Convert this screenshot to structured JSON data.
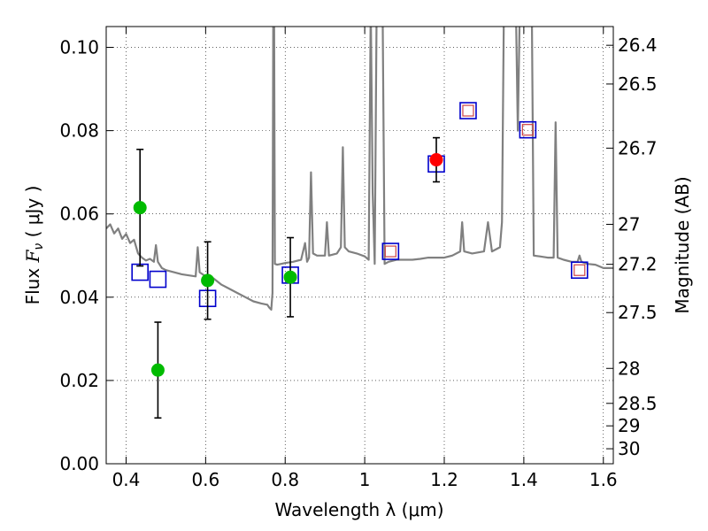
{
  "chart_data": {
    "type": "scatter",
    "xlabel": "Wavelength  λ (μm)",
    "ylabel_left": {
      "prefix": "Flux  ",
      "symbol": "F",
      "sub": "ν",
      "suffix": "  ( μJy )"
    },
    "ylabel_right": "Magnitude (AB)",
    "xlim": [
      0.35,
      1.625
    ],
    "ylim": [
      0.0,
      0.105
    ],
    "grid": true,
    "x_ticks": [
      0.4,
      0.6,
      0.8,
      1.0,
      1.2,
      1.4,
      1.6
    ],
    "x_tick_labels": [
      "0.4",
      "0.6",
      "0.8",
      "1",
      "1.2",
      "1.4",
      "1.6"
    ],
    "y_ticks": [
      0.0,
      0.02,
      0.04,
      0.06,
      0.08,
      0.1
    ],
    "y_tick_labels": [
      "0.00",
      "0.02",
      "0.04",
      "0.06",
      "0.08",
      "0.10"
    ],
    "mag_ticks": [
      {
        "label": "26.4",
        "flux": 0.1005
      },
      {
        "label": "26.5",
        "flux": 0.0912
      },
      {
        "label": "26.7",
        "flux": 0.0758
      },
      {
        "label": "27",
        "flux": 0.0575
      },
      {
        "label": "27.2",
        "flux": 0.0479
      },
      {
        "label": "27.5",
        "flux": 0.0363
      },
      {
        "label": "28",
        "flux": 0.0229
      },
      {
        "label": "28.5",
        "flux": 0.0145
      },
      {
        "label": "29",
        "flux": 0.0091
      },
      {
        "label": "30",
        "flux": 0.0036
      }
    ],
    "colors": {
      "model": "#808080",
      "photometry": "#00bb00",
      "spec_point": "#ff0000",
      "model_box": "#0000cc",
      "model_inner": "#cc4444",
      "errorbar": "#000000"
    },
    "model_spectrum": [
      [
        0.35,
        0.0565
      ],
      [
        0.36,
        0.0575
      ],
      [
        0.37,
        0.0553
      ],
      [
        0.38,
        0.0565
      ],
      [
        0.39,
        0.054
      ],
      [
        0.4,
        0.0552
      ],
      [
        0.41,
        0.053
      ],
      [
        0.42,
        0.0538
      ],
      [
        0.43,
        0.0505
      ],
      [
        0.44,
        0.0495
      ],
      [
        0.45,
        0.0488
      ],
      [
        0.46,
        0.0492
      ],
      [
        0.47,
        0.0485
      ],
      [
        0.475,
        0.0525
      ],
      [
        0.48,
        0.0485
      ],
      [
        0.49,
        0.047
      ],
      [
        0.5,
        0.0465
      ],
      [
        0.52,
        0.046
      ],
      [
        0.54,
        0.0455
      ],
      [
        0.56,
        0.0452
      ],
      [
        0.575,
        0.045
      ],
      [
        0.58,
        0.052
      ],
      [
        0.585,
        0.046
      ],
      [
        0.6,
        0.045
      ],
      [
        0.62,
        0.0445
      ],
      [
        0.64,
        0.043
      ],
      [
        0.66,
        0.042
      ],
      [
        0.68,
        0.041
      ],
      [
        0.7,
        0.04
      ],
      [
        0.72,
        0.039
      ],
      [
        0.74,
        0.0385
      ],
      [
        0.755,
        0.0382
      ],
      [
        0.76,
        0.0375
      ],
      [
        0.765,
        0.037
      ],
      [
        0.768,
        0.041
      ],
      [
        0.77,
        0.11
      ],
      [
        0.772,
        0.11
      ],
      [
        0.774,
        0.048
      ],
      [
        0.78,
        0.0478
      ],
      [
        0.79,
        0.048
      ],
      [
        0.8,
        0.0482
      ],
      [
        0.82,
        0.0485
      ],
      [
        0.84,
        0.049
      ],
      [
        0.85,
        0.053
      ],
      [
        0.855,
        0.0485
      ],
      [
        0.86,
        0.0495
      ],
      [
        0.865,
        0.07
      ],
      [
        0.87,
        0.0505
      ],
      [
        0.88,
        0.05
      ],
      [
        0.9,
        0.05
      ],
      [
        0.905,
        0.058
      ],
      [
        0.91,
        0.05
      ],
      [
        0.93,
        0.0505
      ],
      [
        0.94,
        0.052
      ],
      [
        0.945,
        0.076
      ],
      [
        0.95,
        0.052
      ],
      [
        0.96,
        0.051
      ],
      [
        0.98,
        0.0505
      ],
      [
        1.0,
        0.0498
      ],
      [
        1.01,
        0.049
      ],
      [
        1.015,
        0.11
      ],
      [
        1.02,
        0.065
      ],
      [
        1.025,
        0.048
      ],
      [
        1.03,
        0.11
      ],
      [
        1.045,
        0.11
      ],
      [
        1.05,
        0.048
      ],
      [
        1.06,
        0.0485
      ],
      [
        1.08,
        0.049
      ],
      [
        1.1,
        0.049
      ],
      [
        1.12,
        0.049
      ],
      [
        1.14,
        0.0492
      ],
      [
        1.16,
        0.0495
      ],
      [
        1.18,
        0.0495
      ],
      [
        1.2,
        0.0495
      ],
      [
        1.22,
        0.05
      ],
      [
        1.24,
        0.051
      ],
      [
        1.245,
        0.058
      ],
      [
        1.25,
        0.051
      ],
      [
        1.27,
        0.0505
      ],
      [
        1.3,
        0.051
      ],
      [
        1.31,
        0.058
      ],
      [
        1.32,
        0.051
      ],
      [
        1.34,
        0.052
      ],
      [
        1.345,
        0.058
      ],
      [
        1.35,
        0.11
      ],
      [
        1.38,
        0.11
      ],
      [
        1.385,
        0.08
      ],
      [
        1.39,
        0.11
      ],
      [
        1.4,
        0.11
      ],
      [
        1.42,
        0.11
      ],
      [
        1.425,
        0.05
      ],
      [
        1.44,
        0.0498
      ],
      [
        1.46,
        0.0495
      ],
      [
        1.475,
        0.0495
      ],
      [
        1.48,
        0.082
      ],
      [
        1.485,
        0.0495
      ],
      [
        1.5,
        0.049
      ],
      [
        1.52,
        0.0485
      ],
      [
        1.535,
        0.0485
      ],
      [
        1.54,
        0.05
      ],
      [
        1.545,
        0.0485
      ],
      [
        1.56,
        0.048
      ],
      [
        1.58,
        0.0478
      ],
      [
        1.6,
        0.047
      ],
      [
        1.625,
        0.047
      ]
    ],
    "photometry": [
      {
        "x": 0.435,
        "y": 0.0615,
        "yerr": 0.014
      },
      {
        "x": 0.48,
        "y": 0.0225,
        "yerr": 0.0115
      },
      {
        "x": 0.605,
        "y": 0.044,
        "yerr": 0.0093
      },
      {
        "x": 0.813,
        "y": 0.0448,
        "yerr": 0.0095
      }
    ],
    "spectroscopic_point": {
      "x": 1.18,
      "y": 0.073,
      "yerr": 0.0053
    },
    "model_bandpass": [
      {
        "x": 0.435,
        "y": 0.046,
        "inner": false
      },
      {
        "x": 0.48,
        "y": 0.0443,
        "inner": false
      },
      {
        "x": 0.605,
        "y": 0.0397,
        "inner": false
      },
      {
        "x": 0.813,
        "y": 0.0453,
        "inner": false
      },
      {
        "x": 1.065,
        "y": 0.051,
        "inner": true
      },
      {
        "x": 1.18,
        "y": 0.072,
        "inner": false
      },
      {
        "x": 1.26,
        "y": 0.0848,
        "inner": true
      },
      {
        "x": 1.41,
        "y": 0.0802,
        "inner": true
      },
      {
        "x": 1.54,
        "y": 0.0465,
        "inner": true
      }
    ]
  }
}
